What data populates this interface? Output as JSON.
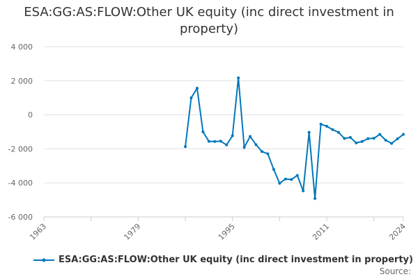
{
  "chart_data": {
    "type": "line",
    "title": "ESA:GG:AS:FLOW:Other UK equity (inc direct investment in property)",
    "xlabel": "",
    "ylabel": "",
    "xlim": [
      1963,
      2024
    ],
    "ylim": [
      -6000,
      4000
    ],
    "x_ticks": [
      "1963",
      "1979",
      "1995",
      "2011",
      "2024"
    ],
    "y_ticks": [
      "4 000",
      "2 000",
      "0",
      "-2 000",
      "-4 000",
      "-6 000"
    ],
    "y_tick_values": [
      4000,
      2000,
      0,
      -2000,
      -4000,
      -6000
    ],
    "grid": true,
    "legend_position": "bottom",
    "series": [
      {
        "name": "ESA:GG:AS:FLOW:Other UK equity (inc direct investment in property)",
        "color": "#0077bb",
        "x": [
          1987,
          1988,
          1989,
          1990,
          1991,
          1992,
          1993,
          1994,
          1995,
          1996,
          1997,
          1998,
          1999,
          2000,
          2001,
          2002,
          2003,
          2004,
          2005,
          2006,
          2007,
          2008,
          2009,
          2010,
          2011,
          2012,
          2013,
          2014,
          2015,
          2016,
          2017,
          2018,
          2019,
          2020,
          2021,
          2022,
          2023,
          2024
        ],
        "values": [
          -1870,
          1000,
          1560,
          -1000,
          -1560,
          -1570,
          -1550,
          -1770,
          -1230,
          2170,
          -1910,
          -1270,
          -1760,
          -2160,
          -2290,
          -3210,
          -4020,
          -3770,
          -3800,
          -3560,
          -4470,
          -1030,
          -4920,
          -550,
          -670,
          -870,
          -1030,
          -1390,
          -1330,
          -1650,
          -1570,
          -1400,
          -1380,
          -1150,
          -1490,
          -1680,
          -1410,
          -1150
        ]
      }
    ]
  },
  "source_label": "Source:"
}
